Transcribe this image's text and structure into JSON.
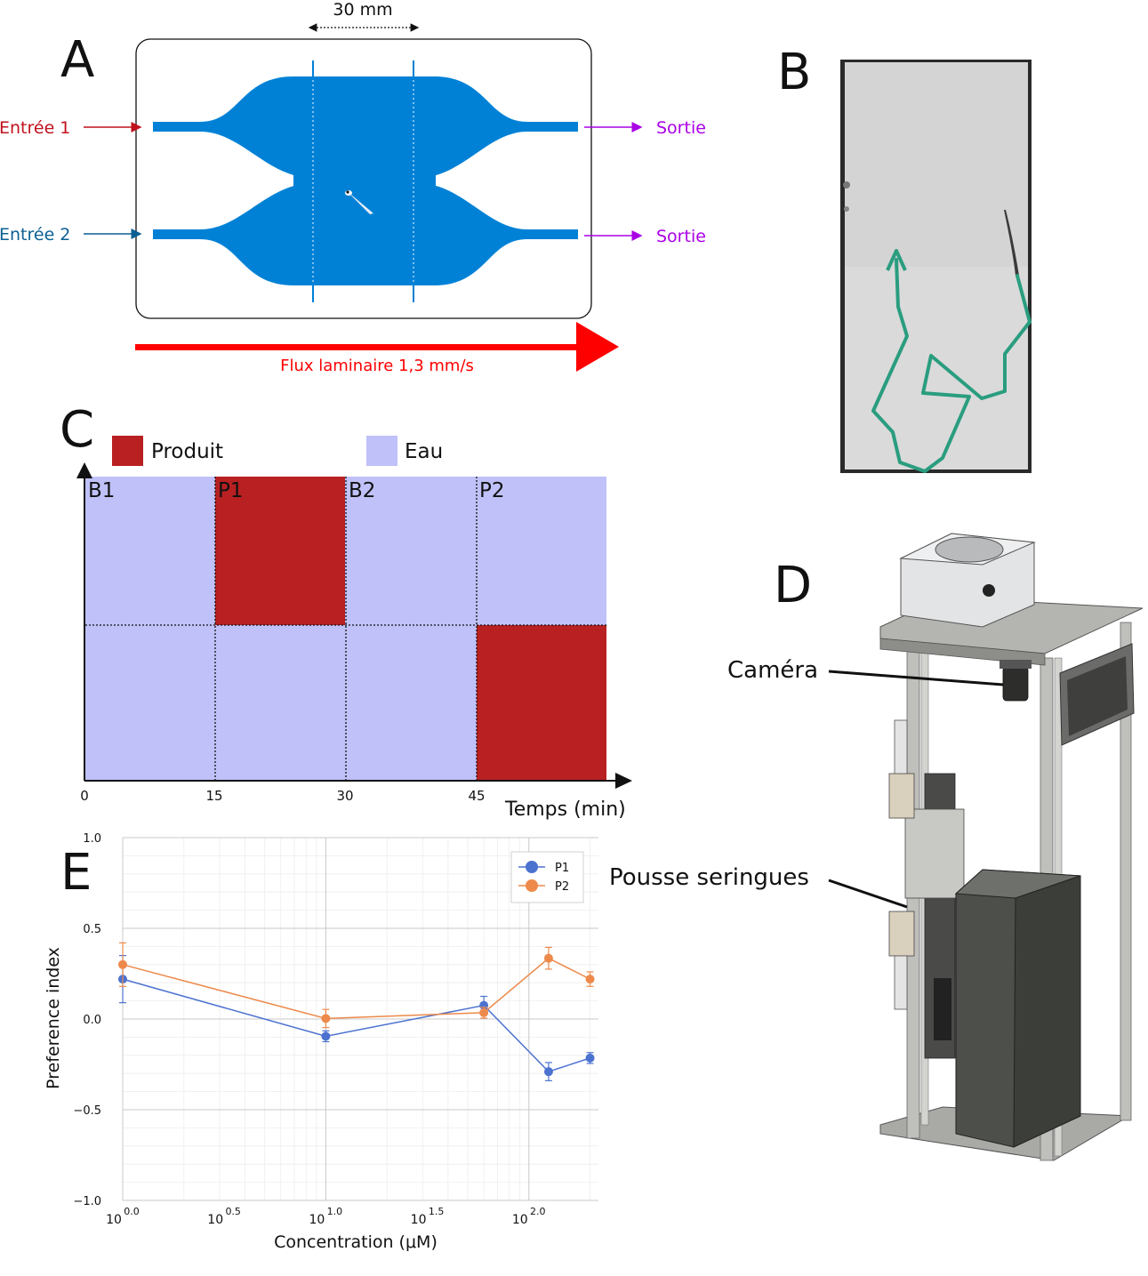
{
  "panels": {
    "a": {
      "letter": "A",
      "width_label": "30 mm",
      "inlet1": "Entrée 1",
      "inlet2": "Entrée 2",
      "outlet1": "Sortie",
      "outlet2": "Sortie",
      "flow_label": "Flux laminaire 1,3 mm/s",
      "colors": {
        "channel": "#0081d6",
        "inlet1": "#c0121d",
        "inlet2": "#0b5f94",
        "outlet": "#aa00e6",
        "flow": "#ff0000"
      }
    },
    "b": {
      "letter": "B",
      "trajectory_color": "#2a9d7f"
    },
    "c": {
      "letter": "C",
      "legend_product": "Produit",
      "legend_water": "Eau",
      "phases": [
        "B1",
        "P1",
        "B2",
        "P2"
      ],
      "x_ticks": [
        "0",
        "15",
        "30",
        "45"
      ],
      "x_label": "Temps (min)",
      "colors": {
        "product": "#b82022",
        "water": "#bfc1f8"
      }
    },
    "d": {
      "letter": "D",
      "camera_label": "Caméra",
      "pump_label": "Pousse seringues"
    },
    "e": {
      "letter": "E"
    }
  },
  "chart_data": {
    "type": "line",
    "title": "",
    "xlabel": "Concentration (μM)",
    "ylabel": "Preference index",
    "xscale": "log",
    "xlim": [
      1,
      220
    ],
    "ylim": [
      -1.0,
      1.0
    ],
    "x_ticks": [
      {
        "base": "10",
        "exp": "0.0"
      },
      {
        "base": "10",
        "exp": "0.5"
      },
      {
        "base": "10",
        "exp": "1.0"
      },
      {
        "base": "10",
        "exp": "1.5"
      },
      {
        "base": "10",
        "exp": "2.0"
      }
    ],
    "y_ticks": [
      "1.0",
      "0.5",
      "0.0",
      "−0.5",
      "−1.0"
    ],
    "grid": true,
    "legend_position": "top-right",
    "series": [
      {
        "name": "P1",
        "color": "#4c72d0",
        "x": [
          1,
          10,
          60,
          125,
          200
        ],
        "y": [
          0.22,
          -0.095,
          0.075,
          -0.29,
          -0.215
        ],
        "err": [
          0.13,
          0.03,
          0.05,
          0.05,
          0.03
        ]
      },
      {
        "name": "P2",
        "color": "#ed8a4b",
        "x": [
          1,
          10,
          60,
          125,
          200
        ],
        "y": [
          0.3,
          0.003,
          0.035,
          0.335,
          0.22
        ],
        "err": [
          0.12,
          0.05,
          0.03,
          0.06,
          0.04
        ]
      }
    ]
  }
}
